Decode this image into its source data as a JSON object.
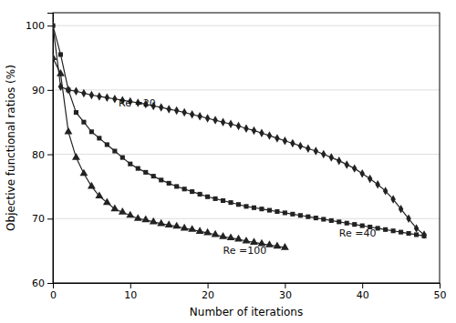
{
  "chart_data": {
    "type": "line",
    "xlabel": "Number of iterations",
    "ylabel": "Objective functional ratios (%)",
    "xlim": [
      0,
      50
    ],
    "ylim": [
      60,
      102
    ],
    "xticks": [
      0,
      10,
      20,
      30,
      40,
      50
    ],
    "yticks": [
      60,
      70,
      80,
      90,
      100
    ],
    "grid": "y",
    "series": [
      {
        "color": "#222222",
        "marker": "diamond",
        "x": [
          0,
          1,
          2,
          3,
          4,
          5,
          6,
          7,
          8,
          9,
          10,
          11,
          12,
          13,
          14,
          15,
          16,
          17,
          18,
          19,
          20,
          21,
          22,
          23,
          24,
          25,
          26,
          27,
          28,
          29,
          30,
          31,
          32,
          33,
          34,
          35,
          36,
          37,
          38,
          39,
          40,
          41,
          42,
          43,
          44,
          45,
          46,
          47,
          48
        ],
        "values": [
          100,
          90.5,
          90.0,
          89.8,
          89.5,
          89.2,
          89.0,
          88.8,
          88.6,
          88.4,
          88.2,
          88.0,
          87.8,
          87.5,
          87.3,
          87.0,
          86.8,
          86.5,
          86.2,
          85.9,
          85.6,
          85.3,
          85.0,
          84.7,
          84.4,
          84.0,
          83.7,
          83.3,
          82.9,
          82.5,
          82.1,
          81.7,
          81.3,
          80.9,
          80.5,
          80.0,
          79.5,
          79.0,
          78.4,
          77.8,
          77.0,
          76.2,
          75.3,
          74.3,
          73.0,
          71.5,
          70.0,
          68.5,
          67.5
        ]
      },
      {
        "color": "#222222",
        "marker": "square",
        "x": [
          0,
          1,
          2,
          3,
          4,
          5,
          6,
          7,
          8,
          9,
          10,
          11,
          12,
          13,
          14,
          15,
          16,
          17,
          18,
          19,
          20,
          21,
          22,
          23,
          24,
          25,
          26,
          27,
          28,
          29,
          30,
          31,
          32,
          33,
          34,
          35,
          36,
          37,
          38,
          39,
          40,
          41,
          42,
          43,
          44,
          45,
          46,
          47,
          48
        ],
        "values": [
          100,
          95.5,
          90.0,
          86.5,
          85.0,
          83.5,
          82.5,
          81.5,
          80.5,
          79.5,
          78.5,
          77.8,
          77.2,
          76.6,
          76.0,
          75.5,
          75.0,
          74.6,
          74.2,
          73.8,
          73.4,
          73.1,
          72.8,
          72.5,
          72.2,
          71.9,
          71.7,
          71.5,
          71.3,
          71.1,
          70.9,
          70.7,
          70.5,
          70.3,
          70.1,
          69.9,
          69.7,
          69.5,
          69.3,
          69.1,
          68.9,
          68.7,
          68.5,
          68.3,
          68.1,
          67.9,
          67.7,
          67.5,
          67.3
        ]
      },
      {
        "color": "#222222",
        "marker": "triangle",
        "x": [
          0,
          1,
          2,
          3,
          4,
          5,
          6,
          7,
          8,
          9,
          10,
          11,
          12,
          13,
          14,
          15,
          16,
          17,
          18,
          19,
          20,
          21,
          22,
          23,
          24,
          25,
          26,
          27,
          28,
          29,
          30
        ],
        "values": [
          95.0,
          92.5,
          83.5,
          79.5,
          77.0,
          75.0,
          73.5,
          72.5,
          71.5,
          71.0,
          70.5,
          70.0,
          69.8,
          69.5,
          69.2,
          69.0,
          68.8,
          68.5,
          68.3,
          68.0,
          67.8,
          67.5,
          67.2,
          67.0,
          66.8,
          66.5,
          66.3,
          66.1,
          65.9,
          65.7,
          65.5
        ]
      }
    ],
    "annotations": [
      {
        "x": 8.5,
        "y": 87.5,
        "text": "Re =20"
      },
      {
        "x": 37,
        "y": 67.2,
        "text": "Re =40"
      },
      {
        "x": 22,
        "y": 64.5,
        "text": "Re =100"
      }
    ]
  }
}
